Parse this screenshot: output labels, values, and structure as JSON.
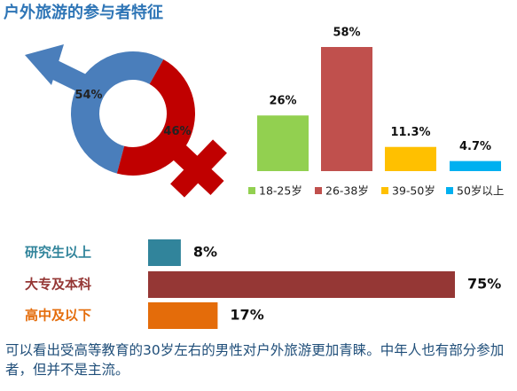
{
  "title": "户外旅游的参与者特征",
  "chart_data": [
    {
      "type": "pie",
      "values": [
        54,
        46
      ],
      "value_labels": [
        "54%",
        "46%"
      ],
      "colors": [
        "#4a7ebb",
        "#c00000"
      ]
    },
    {
      "type": "bar",
      "categories": [
        "18-25岁",
        "26-38岁",
        "39-50岁",
        "50岁以上"
      ],
      "values": [
        26,
        58,
        11.3,
        4.7
      ],
      "value_labels": [
        "26%",
        "58%",
        "11.3%",
        "4.7%"
      ],
      "colors": [
        "#92d050",
        "#c0504d",
        "#ffc000",
        "#00b0f0"
      ],
      "legend": "bottom"
    },
    {
      "type": "hbar",
      "categories": [
        "研究生以上",
        "大专及本科",
        "高中及以下"
      ],
      "values": [
        8,
        75,
        17
      ],
      "value_labels": [
        "8%",
        "75%",
        "17%"
      ],
      "colors": [
        "#31849b",
        "#953735",
        "#e46c0a"
      ]
    }
  ],
  "caption": "可以看出受高等教育的30岁左右的男性对户外旅游更加青睐。中年人也有部分参加者，但并不是主流。"
}
